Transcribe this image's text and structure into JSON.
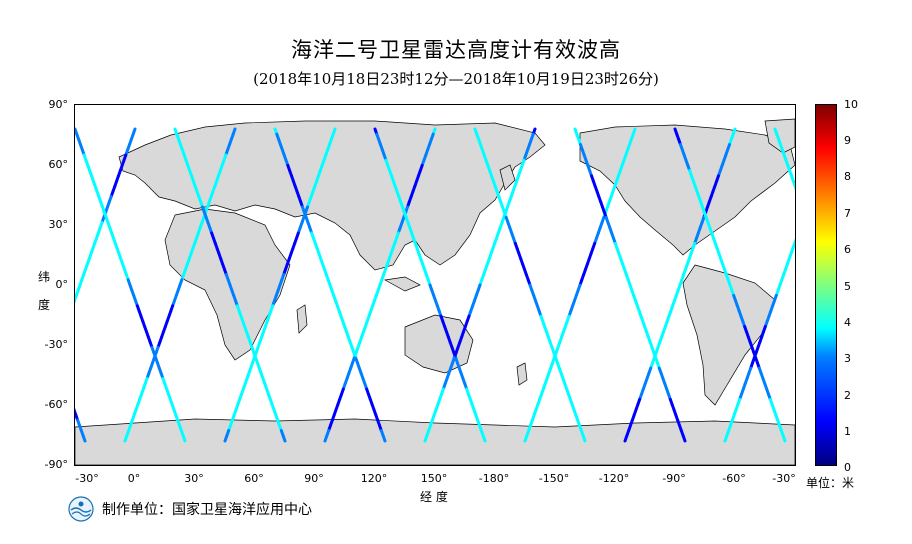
{
  "title": "海洋二号卫星雷达高度计有效波高",
  "subtitle": "(2018年10月18日23时12分—2018年10月19日23时26分)",
  "axes": {
    "ylabel_chars": [
      "纬",
      "度"
    ],
    "xlabel": "经 度",
    "yticks": [
      "90°",
      "60°",
      "30°",
      "0°",
      "-30°",
      "-60°",
      "-90°"
    ],
    "xticks": [
      "-30°",
      "0°",
      "30°",
      "60°",
      "90°",
      "120°",
      "150°",
      "-180°",
      "-150°",
      "-120°",
      "-90°",
      "-60°",
      "-30°"
    ]
  },
  "colorbar": {
    "ticks": [
      "10",
      "9",
      "8",
      "7",
      "6",
      "5",
      "4",
      "3",
      "2",
      "1",
      "0"
    ],
    "unit": "单位：米",
    "colors": [
      "#00007f",
      "#0000ff",
      "#007fff",
      "#00ffff",
      "#7fff7f",
      "#ffff00",
      "#ff7f00",
      "#ff0000",
      "#7f0000"
    ]
  },
  "footer": {
    "org": "制作单位：国家卫星海洋应用中心"
  },
  "chart_data": {
    "type": "heatmap",
    "lon_range": [
      -40,
      320
    ],
    "lat_range": [
      -90,
      90
    ],
    "value_range": [
      0,
      10
    ],
    "tracks": "satellite ground tracks colored by significant wave height",
    "land_color": "#d9d9d9"
  }
}
